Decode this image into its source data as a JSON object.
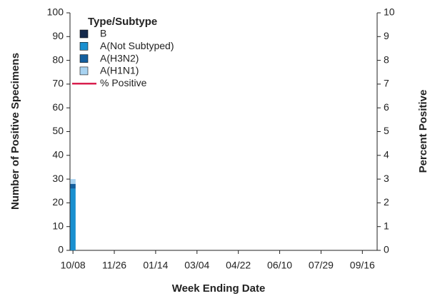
{
  "chart_data": {
    "type": "bar",
    "x_label": "Week Ending Date",
    "y_label": "Number of Positive Specimens",
    "y2_label": "Percent Positive",
    "legend_title": "Type/Subtype",
    "legend_position": "upper left",
    "categories": [
      "10/08",
      null,
      null,
      null,
      null,
      null,
      null,
      "11/26",
      null,
      null,
      null,
      null,
      null,
      null,
      "01/14",
      null,
      null,
      null,
      null,
      null,
      null,
      "03/04",
      null,
      null,
      null,
      null,
      null,
      null,
      "04/22",
      null,
      null,
      null,
      null,
      null,
      null,
      "06/10",
      null,
      null,
      null,
      null,
      null,
      null,
      "07/29",
      null,
      null,
      null,
      null,
      null,
      null,
      "09/16",
      null,
      null
    ],
    "series": [
      {
        "name": "B",
        "color": "#14294b",
        "values": [
          0,
          0,
          0,
          0,
          0,
          0,
          0,
          0,
          0,
          0,
          0,
          0,
          0,
          0,
          0,
          0,
          0,
          0,
          0,
          0,
          0,
          0,
          0,
          0,
          0,
          0,
          0,
          0,
          0,
          0,
          0,
          0,
          0,
          0,
          0,
          0,
          0,
          0,
          0,
          0,
          0,
          0,
          0,
          0,
          0,
          0,
          0,
          0,
          0,
          0,
          0,
          0
        ]
      },
      {
        "name": "A(Not Subtyped)",
        "color": "#1a90d0",
        "values": [
          26,
          0,
          0,
          0,
          0,
          0,
          0,
          0,
          0,
          0,
          0,
          0,
          0,
          0,
          0,
          0,
          0,
          0,
          0,
          0,
          0,
          0,
          0,
          0,
          0,
          0,
          0,
          0,
          0,
          0,
          0,
          0,
          0,
          0,
          0,
          0,
          0,
          0,
          0,
          0,
          0,
          0,
          0,
          0,
          0,
          0,
          0,
          0,
          0,
          0,
          0,
          0
        ]
      },
      {
        "name": "A(H3N2)",
        "color": "#145f9e",
        "values": [
          2,
          0,
          0,
          0,
          0,
          0,
          0,
          0,
          0,
          0,
          0,
          0,
          0,
          0,
          0,
          0,
          0,
          0,
          0,
          0,
          0,
          0,
          0,
          0,
          0,
          0,
          0,
          0,
          0,
          0,
          0,
          0,
          0,
          0,
          0,
          0,
          0,
          0,
          0,
          0,
          0,
          0,
          0,
          0,
          0,
          0,
          0,
          0,
          0,
          0,
          0,
          0
        ]
      },
      {
        "name": "A(H1N1)",
        "color": "#a8d3f1",
        "values": [
          2,
          0,
          0,
          0,
          0,
          0,
          0,
          0,
          0,
          0,
          0,
          0,
          0,
          0,
          0,
          0,
          0,
          0,
          0,
          0,
          0,
          0,
          0,
          0,
          0,
          0,
          0,
          0,
          0,
          0,
          0,
          0,
          0,
          0,
          0,
          0,
          0,
          0,
          0,
          0,
          0,
          0,
          0,
          0,
          0,
          0,
          0,
          0,
          0,
          0,
          0,
          0
        ]
      },
      {
        "name": "% Positive",
        "type": "line",
        "axis": "y2",
        "color": "#d81f4e",
        "values": [
          null,
          null,
          null,
          null,
          null,
          null,
          null,
          null,
          null,
          null,
          null,
          null,
          null,
          null,
          null,
          null,
          null,
          null,
          null,
          null,
          null,
          null,
          null,
          null,
          null,
          null,
          null,
          null,
          null,
          null,
          null,
          null,
          null,
          null,
          null,
          null,
          null,
          null,
          null,
          null,
          null,
          null,
          null,
          null,
          null,
          null,
          null,
          null,
          null,
          null,
          null,
          null
        ]
      }
    ],
    "ylim": [
      0,
      100
    ],
    "yticks": [
      0,
      10,
      20,
      30,
      40,
      50,
      60,
      70,
      80,
      90,
      100
    ],
    "y2lim": [
      0,
      10
    ],
    "y2ticks": [
      0,
      1,
      2,
      3,
      4,
      5,
      6,
      7,
      8,
      9,
      10
    ]
  }
}
